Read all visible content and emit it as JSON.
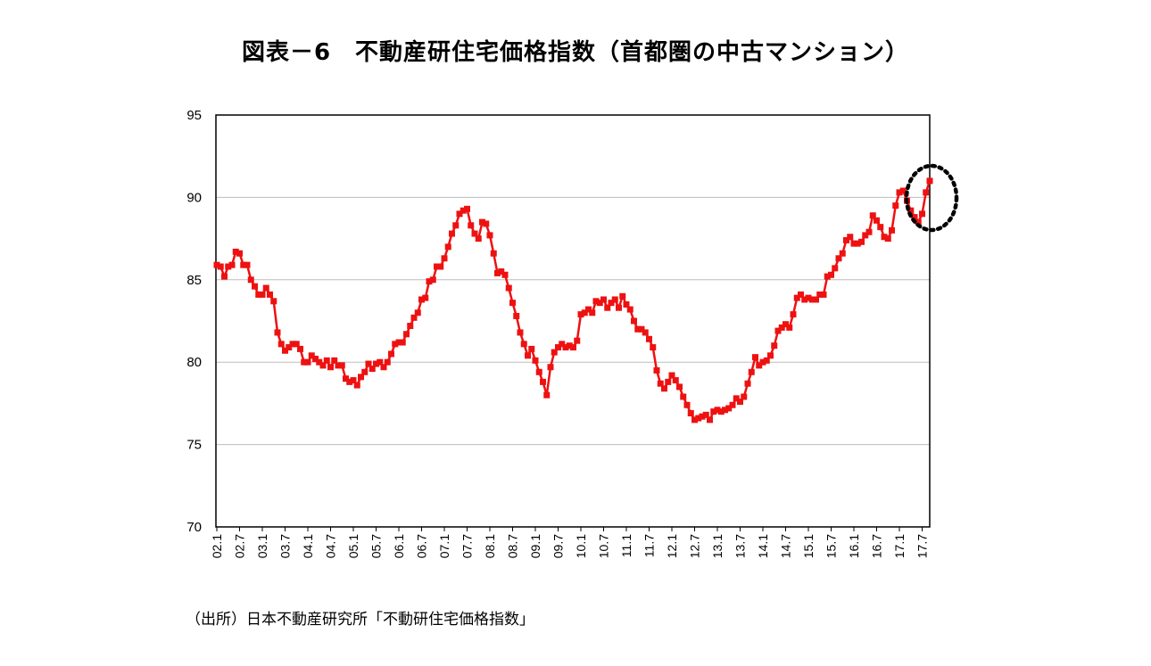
{
  "title": "図表－6　不動産研住宅価格指数（首都圏の中古マンション）",
  "source": "（出所）日本不動産研究所「不動研住宅価格指数」",
  "chart_data": {
    "type": "line",
    "title": "図表－6　不動産研住宅価格指数（首都圏の中古マンション）",
    "xlabel": "",
    "ylabel": "",
    "ylim": [
      70,
      95
    ],
    "yticks": [
      70,
      75,
      80,
      85,
      90,
      95
    ],
    "grid": true,
    "legend": "none",
    "line_color": "#ee1111",
    "marker": "square",
    "x_tick_labels": [
      "02.1",
      "02.7",
      "03.1",
      "03.7",
      "04.1",
      "04.7",
      "05.1",
      "05.7",
      "06.1",
      "06.7",
      "07.1",
      "07.7",
      "08.1",
      "08.7",
      "09.1",
      "09.7",
      "10.1",
      "10.7",
      "11.1",
      "11.7",
      "12.1",
      "12.7",
      "13.1",
      "13.7",
      "14.1",
      "14.7",
      "15.1",
      "15.7",
      "16.1",
      "16.7",
      "17.1",
      "17.7"
    ],
    "series": [
      {
        "values": [
          85.9,
          85.8,
          85.2,
          85.8,
          85.9,
          86.7,
          86.6,
          85.9,
          85.9,
          85.0,
          84.6,
          84.1,
          84.1,
          84.5,
          84.1,
          83.7,
          81.8,
          81.1,
          80.7,
          80.9,
          81.1,
          81.1,
          80.8,
          80.0,
          80.0,
          80.4,
          80.2,
          80.0,
          79.8,
          80.1,
          79.7,
          80.1,
          79.8,
          79.8,
          79.0,
          78.8,
          78.9,
          78.6,
          79.1,
          79.4,
          79.9,
          79.6,
          79.9,
          80.0,
          79.7,
          80.0,
          80.5,
          81.1,
          81.2,
          81.2,
          81.7,
          82.2,
          82.7,
          83.0,
          83.8,
          83.9,
          84.9,
          85.0,
          85.8,
          85.8,
          86.3,
          87.0,
          87.8,
          88.3,
          89.0,
          89.2,
          89.3,
          88.3,
          87.8,
          87.5,
          88.5,
          88.4,
          87.7,
          86.6,
          85.4,
          85.5,
          85.3,
          84.5,
          83.6,
          82.8,
          81.8,
          81.1,
          80.4,
          80.8,
          80.1,
          79.4,
          78.8,
          78.0,
          79.7,
          80.6,
          80.9,
          81.1,
          80.9,
          81.0,
          80.9,
          81.3,
          82.9,
          83.0,
          83.2,
          83.0,
          83.7,
          83.6,
          83.8,
          83.3,
          83.6,
          83.8,
          83.3,
          84.0,
          83.5,
          83.2,
          82.5,
          82.0,
          82.0,
          81.8,
          81.4,
          80.9,
          79.5,
          78.7,
          78.4,
          78.8,
          79.2,
          78.9,
          78.5,
          77.9,
          77.4,
          76.9,
          76.5,
          76.6,
          76.7,
          76.8,
          76.5,
          77.0,
          77.1,
          77.0,
          77.1,
          77.2,
          77.4,
          77.8,
          77.6,
          77.9,
          78.7,
          79.4,
          80.3,
          79.8,
          80.0,
          80.1,
          80.4,
          81.0,
          81.9,
          82.1,
          82.3,
          82.1,
          82.9,
          83.9,
          84.1,
          83.8,
          83.9,
          83.8,
          83.8,
          84.1,
          84.1,
          85.2,
          85.3,
          85.7,
          86.3,
          86.6,
          87.4,
          87.6,
          87.2,
          87.2,
          87.3,
          87.7,
          87.9,
          88.9,
          88.6,
          88.2,
          87.6,
          87.5,
          88.0,
          89.5,
          90.3,
          90.4,
          89.8,
          89.2,
          88.8,
          88.5,
          89.0,
          90.3,
          91.0
        ]
      }
    ],
    "annotation": "dotted-ellipse-highlight-latest"
  }
}
